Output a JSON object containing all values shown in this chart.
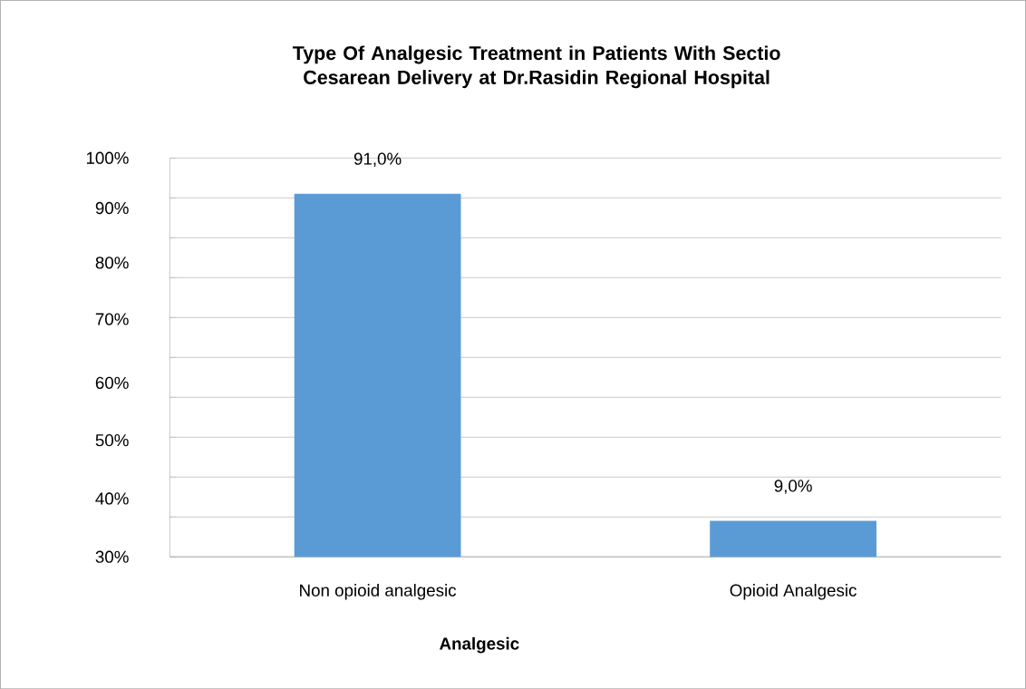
{
  "chart_data": {
    "type": "bar",
    "title": "Type Of Analgesic Treatment in Patients With  Sectio Cesarean Delivery at Dr.Rasidin Regional Hospital",
    "xlabel": "Analgesic",
    "categories": [
      "Non opioid analgesic",
      "Opioid Analgesic"
    ],
    "values": [
      91.0,
      9.0
    ],
    "value_labels": [
      "91,0%",
      "9,0%"
    ],
    "color": "#5b9bd5",
    "ylim": [
      0,
      100
    ],
    "yticks": [
      {
        "value": 0,
        "label": null
      },
      {
        "value": 10,
        "label": null
      },
      {
        "value": 20,
        "label": null
      },
      {
        "value": 30,
        "label": null
      },
      {
        "value": 40,
        "label": null
      },
      {
        "value": 50,
        "label": null
      },
      {
        "value": 60,
        "label": null
      },
      {
        "value": 70,
        "label": null
      },
      {
        "value": 80,
        "label": null
      },
      {
        "value": 90,
        "label": null
      },
      {
        "value": 100,
        "label": null
      }
    ],
    "annotations": [
      "100%",
      "90%",
      "80%",
      "70%",
      "60%",
      "50%",
      "40%",
      "30%"
    ],
    "grid": "y"
  }
}
